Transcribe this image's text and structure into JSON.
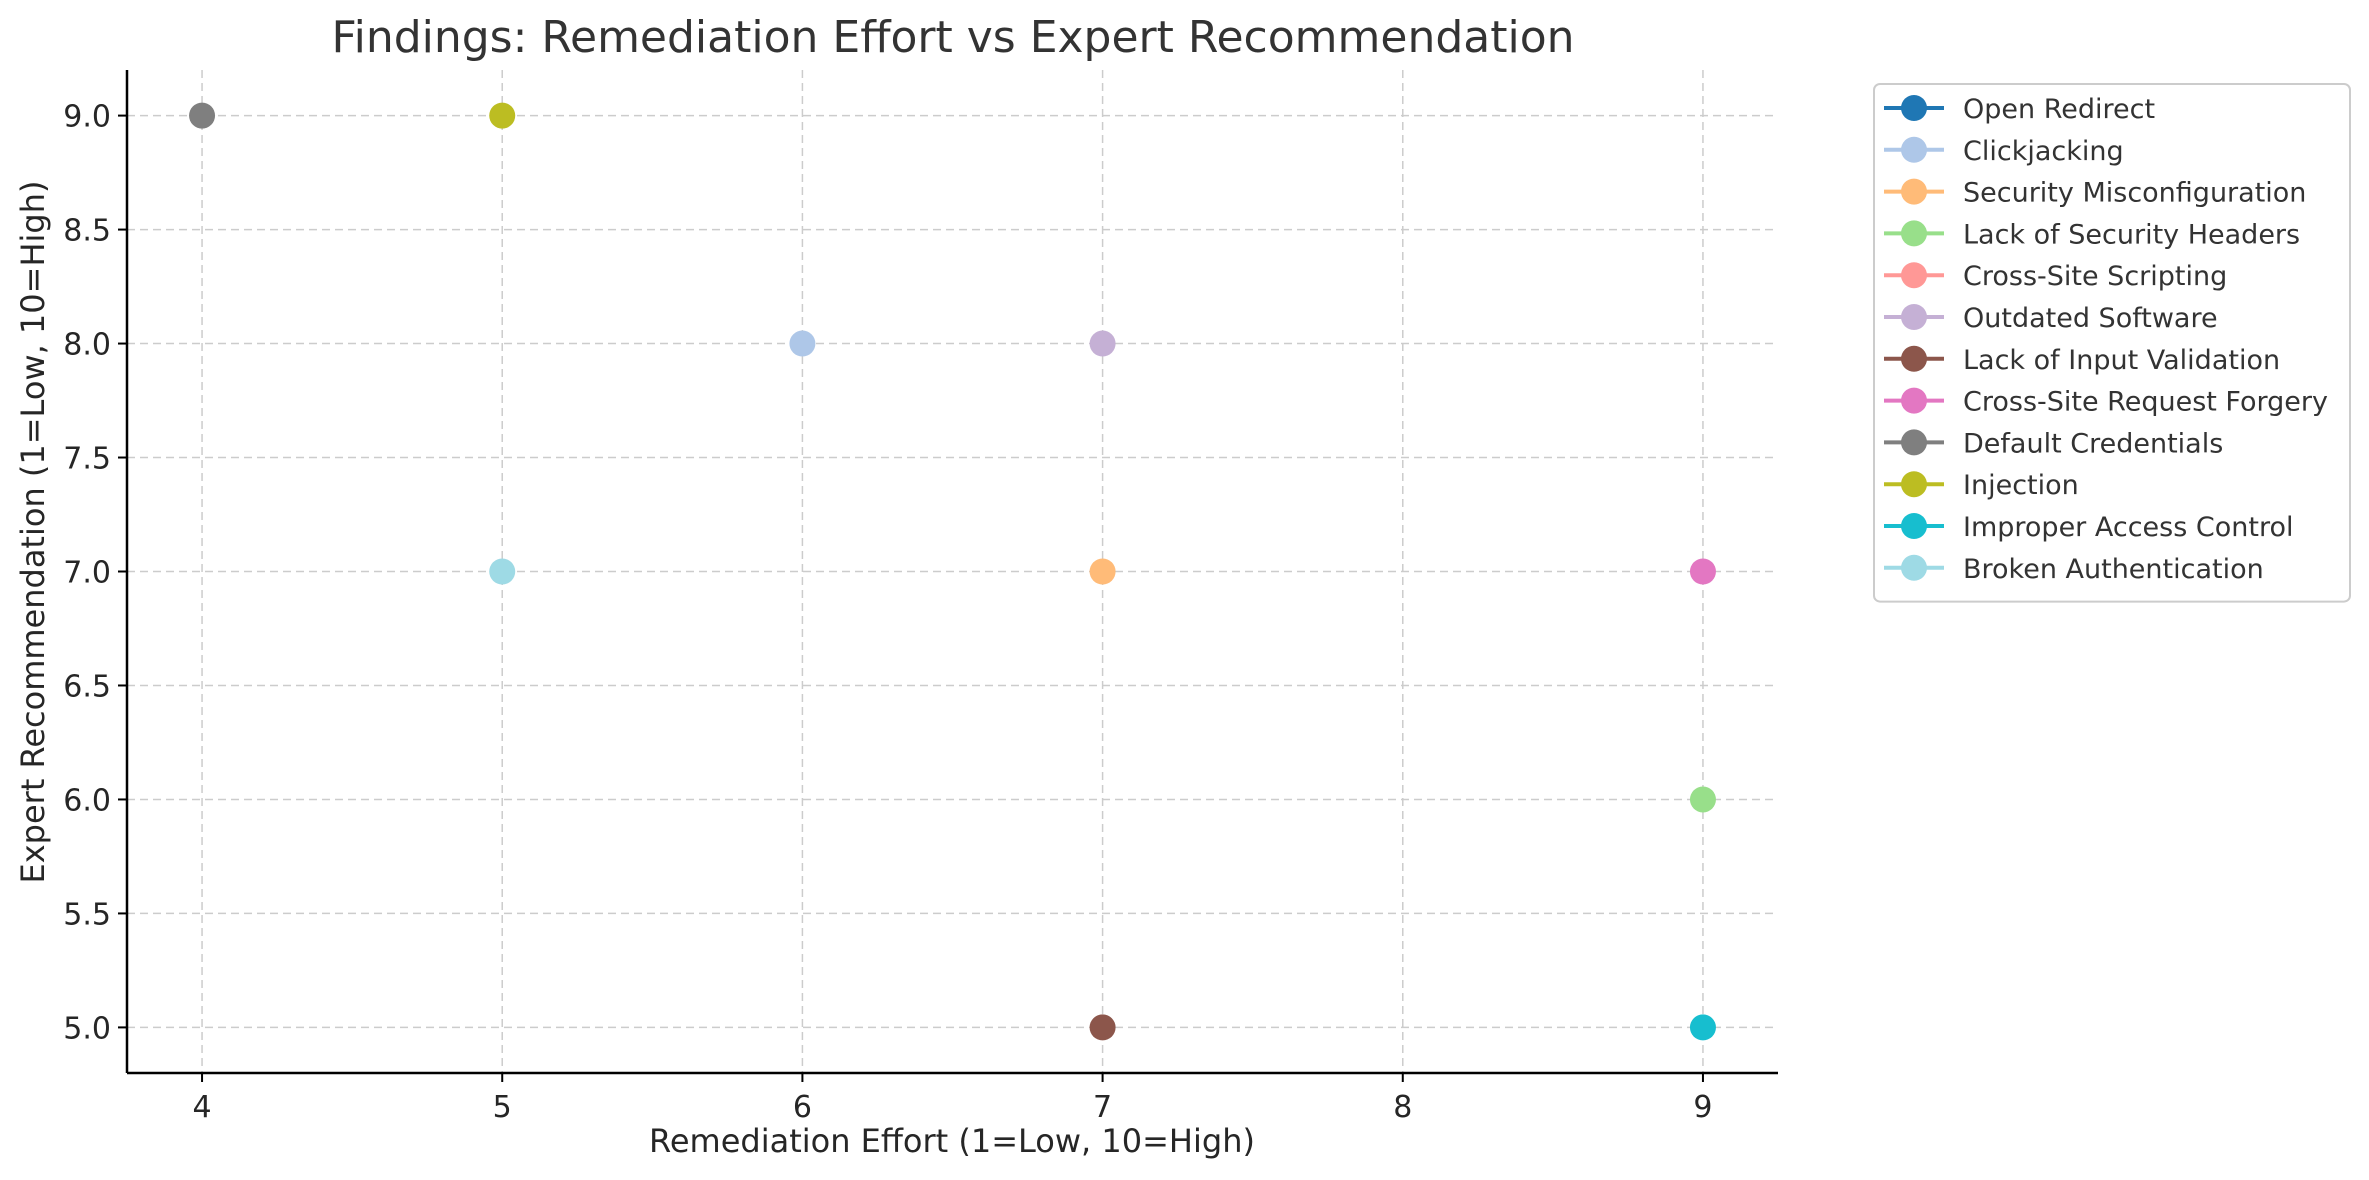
{
  "chart_data": {
    "type": "scatter",
    "title": "Findings: Remediation Effort vs Expert Recommendation",
    "xlabel": "Remediation Effort (1=Low, 10=High)",
    "ylabel": "Expert Recommendation (1=Low, 10=High)",
    "xlim": [
      3.75,
      9.25
    ],
    "ylim": [
      4.8,
      9.2
    ],
    "xticks": [
      "4",
      "5",
      "6",
      "7",
      "8",
      "9"
    ],
    "yticks": [
      "5.0",
      "5.5",
      "6.0",
      "6.5",
      "7.0",
      "7.5",
      "8.0",
      "8.5",
      "9.0"
    ],
    "grid": true,
    "legend_position": "outside-top-right",
    "series": [
      {
        "name": "Open Redirect",
        "color": "#1f77b4",
        "x": null,
        "y": null
      },
      {
        "name": "Clickjacking",
        "color": "#aec7e8",
        "x": 6,
        "y": 8
      },
      {
        "name": "Security Misconfiguration",
        "color": "#ffbb78",
        "x": 7,
        "y": 7
      },
      {
        "name": "Lack of Security Headers",
        "color": "#98df8a",
        "x": 9,
        "y": 6
      },
      {
        "name": "Cross-Site Scripting",
        "color": "#ff9896",
        "x": null,
        "y": null
      },
      {
        "name": "Outdated Software",
        "color": "#c5b0d5",
        "x": 7,
        "y": 8
      },
      {
        "name": "Lack of Input Validation",
        "color": "#8c564b",
        "x": 7,
        "y": 5
      },
      {
        "name": "Cross-Site Request Forgery",
        "color": "#e377c2",
        "x": 9,
        "y": 7
      },
      {
        "name": "Default Credentials",
        "color": "#7f7f7f",
        "x": 4,
        "y": 9
      },
      {
        "name": "Injection",
        "color": "#bcbd22",
        "x": 5,
        "y": 9
      },
      {
        "name": "Improper Access Control",
        "color": "#17becf",
        "x": 9,
        "y": 5
      },
      {
        "name": "Broken Authentication",
        "color": "#9edae5",
        "x": 5,
        "y": 7
      }
    ]
  }
}
